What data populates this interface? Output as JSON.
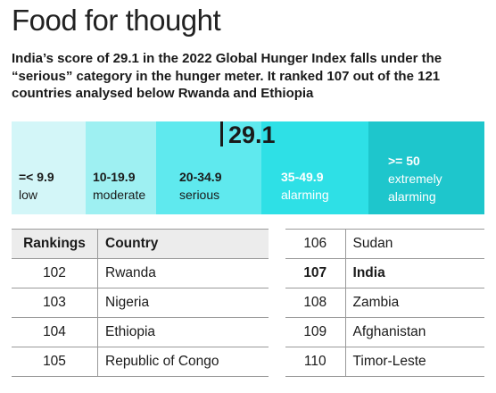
{
  "title": "Food for thought",
  "subtitle": "India’s score of 29.1 in the 2022 Global Hunger Index falls under the “serious” category in the hunger meter. It ranked 107 out of the 121 countries analysed below Rwanda and Ethiopia",
  "meter": {
    "score": "29.1",
    "score_value": 29.1,
    "segments": [
      {
        "range": "=< 9.9",
        "label": "low",
        "color": "#d3f6f8",
        "text_color": "#1a1a1a"
      },
      {
        "range": "10-19.9",
        "label": "moderate",
        "color": "#9ef0f2",
        "text_color": "#1a1a1a"
      },
      {
        "range": "20-34.9",
        "label": "serious",
        "color": "#5fe9ee",
        "text_color": "#1a1a1a"
      },
      {
        "range": "35-49.9",
        "label": "alarming",
        "color": "#2ee0e6",
        "text_color": "#ffffff"
      },
      {
        "range": ">= 50",
        "label": "extremely alarming",
        "color": "#1ec6cc",
        "text_color": "#ffffff"
      }
    ]
  },
  "table_left": {
    "headers": [
      "Rankings",
      "Country"
    ],
    "rows": [
      [
        "102",
        "Rwanda"
      ],
      [
        "103",
        "Nigeria"
      ],
      [
        "104",
        "Ethiopia"
      ],
      [
        "105",
        "Republic of Congo"
      ]
    ]
  },
  "table_right": {
    "rows": [
      [
        "106",
        "Sudan"
      ],
      [
        "107",
        "India"
      ],
      [
        "108",
        "Zambia"
      ],
      [
        "109",
        "Afghanistan"
      ],
      [
        "110",
        "Timor-Leste"
      ]
    ],
    "highlight_rank": "107"
  }
}
